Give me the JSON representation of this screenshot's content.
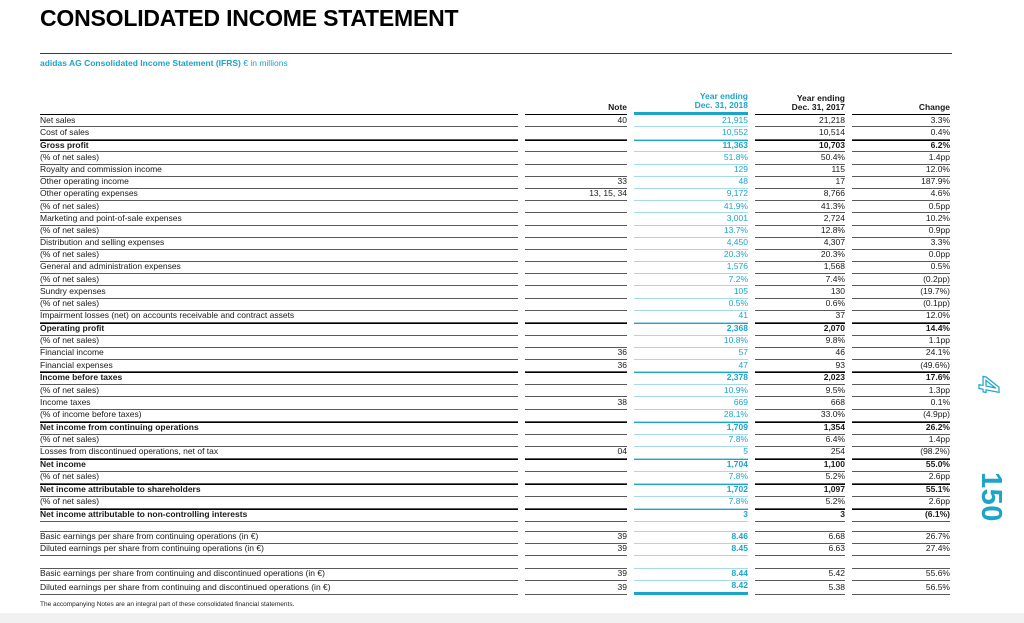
{
  "page": {
    "title": "CONSOLIDATED INCOME STATEMENT",
    "subtitle_bold": "adidas AG Consolidated Income Statement (IFRS)",
    "subtitle_unit": "€ in millions",
    "footnote": "The accompanying Notes are an integral part of these consolidated financial statements.",
    "side_chapter": "4",
    "side_page": "150"
  },
  "colors": {
    "accent": "#1CA4C9",
    "accent_light_rule": "#A6D9EA",
    "rule_dark": "#5a5a5a",
    "rule_black": "#000000"
  },
  "table": {
    "columns": {
      "note": "Note",
      "y2018": {
        "line1": "Year ending",
        "line2": "Dec. 31, 2018"
      },
      "y2017": {
        "line1": "Year ending",
        "line2": "Dec. 31, 2017"
      },
      "change": "Change"
    },
    "rows": [
      {
        "label": "Net sales",
        "indent": 0,
        "bold": false,
        "note": "40",
        "y2018": "21,915",
        "y2017": "21,218",
        "change": "3.3%"
      },
      {
        "label": "Cost of sales",
        "indent": 0,
        "bold": false,
        "note": "",
        "y2018": "10,552",
        "y2017": "10,514",
        "change": "0.4%"
      },
      {
        "label": "Gross profit",
        "indent": 0,
        "bold": true,
        "note": "",
        "y2018": "11,363",
        "y2017": "10,703",
        "change": "6.2%"
      },
      {
        "label": "(% of net sales)",
        "indent": 1,
        "bold": false,
        "note": "",
        "y2018": "51.8%",
        "y2017": "50.4%",
        "change": "1.4pp"
      },
      {
        "label": "Royalty and commission income",
        "indent": 0,
        "bold": false,
        "note": "",
        "y2018": "129",
        "y2017": "115",
        "change": "12.0%"
      },
      {
        "label": "Other operating income",
        "indent": 0,
        "bold": false,
        "note": "33",
        "y2018": "48",
        "y2017": "17",
        "change": "187.9%"
      },
      {
        "label": "Other operating expenses",
        "indent": 0,
        "bold": false,
        "note": "13, 15, 34",
        "y2018": "9,172",
        "y2017": "8,766",
        "change": "4.6%"
      },
      {
        "label": "(% of net sales)",
        "indent": 1,
        "bold": false,
        "note": "",
        "y2018": "41.9%",
        "y2017": "41.3%",
        "change": "0.5pp"
      },
      {
        "label": "Marketing and point-of-sale expenses",
        "indent": 2,
        "bold": false,
        "note": "",
        "y2018": "3,001",
        "y2017": "2,724",
        "change": "10.2%"
      },
      {
        "label": "(% of net sales)",
        "indent": 3,
        "bold": false,
        "note": "",
        "y2018": "13.7%",
        "y2017": "12.8%",
        "change": "0.9pp"
      },
      {
        "label": "Distribution and selling expenses",
        "indent": 2,
        "bold": false,
        "note": "",
        "y2018": "4,450",
        "y2017": "4,307",
        "change": "3.3%"
      },
      {
        "label": "(% of net sales)",
        "indent": 3,
        "bold": false,
        "note": "",
        "y2018": "20.3%",
        "y2017": "20.3%",
        "change": "0.0pp"
      },
      {
        "label": "General and administration expenses",
        "indent": 2,
        "bold": false,
        "note": "",
        "y2018": "1,576",
        "y2017": "1,568",
        "change": "0.5%"
      },
      {
        "label": "(% of net sales)",
        "indent": 3,
        "bold": false,
        "note": "",
        "y2018": "7.2%",
        "y2017": "7.4%",
        "change": "(0.2pp)"
      },
      {
        "label": "Sundry expenses",
        "indent": 2,
        "bold": false,
        "note": "",
        "y2018": "105",
        "y2017": "130",
        "change": "(19.7%)"
      },
      {
        "label": "(% of net sales)",
        "indent": 3,
        "bold": false,
        "note": "",
        "y2018": "0.5%",
        "y2017": "0.6%",
        "change": "(0.1pp)"
      },
      {
        "label": "Impairment losses (net) on accounts receivable and contract assets",
        "indent": 2,
        "bold": false,
        "note": "",
        "y2018": "41",
        "y2017": "37",
        "change": "12.0%"
      },
      {
        "label": "Operating profit",
        "indent": 0,
        "bold": true,
        "note": "",
        "y2018": "2,368",
        "y2017": "2,070",
        "change": "14.4%"
      },
      {
        "label": "(% of net sales)",
        "indent": 1,
        "bold": false,
        "note": "",
        "y2018": "10.8%",
        "y2017": "9.8%",
        "change": "1.1pp"
      },
      {
        "label": "Financial income",
        "indent": 0,
        "bold": false,
        "note": "36",
        "y2018": "57",
        "y2017": "46",
        "change": "24.1%"
      },
      {
        "label": "Financial expenses",
        "indent": 0,
        "bold": false,
        "note": "36",
        "y2018": "47",
        "y2017": "93",
        "change": "(49.6%)"
      },
      {
        "label": "Income before taxes",
        "indent": 0,
        "bold": true,
        "note": "",
        "y2018": "2,378",
        "y2017": "2,023",
        "change": "17.6%"
      },
      {
        "label": "(% of net sales)",
        "indent": 1,
        "bold": false,
        "note": "",
        "y2018": "10.9%",
        "y2017": "9.5%",
        "change": "1.3pp"
      },
      {
        "label": "Income taxes",
        "indent": 0,
        "bold": false,
        "note": "38",
        "y2018": "669",
        "y2017": "668",
        "change": "0.1%"
      },
      {
        "label": "(% of income before taxes)",
        "indent": 1,
        "bold": false,
        "note": "",
        "y2018": "28.1%",
        "y2017": "33.0%",
        "change": "(4.9pp)"
      },
      {
        "label": "Net income from continuing operations",
        "indent": 0,
        "bold": true,
        "note": "",
        "y2018": "1,709",
        "y2017": "1,354",
        "change": "26.2%"
      },
      {
        "label": "(% of net sales)",
        "indent": 1,
        "bold": false,
        "note": "",
        "y2018": "7.8%",
        "y2017": "6.4%",
        "change": "1.4pp"
      },
      {
        "label": "Losses from discontinued operations, net of tax",
        "indent": 0,
        "bold": false,
        "note": "04",
        "y2018": "5",
        "y2017": "254",
        "change": "(98.2%)"
      },
      {
        "label": "Net income",
        "indent": 0,
        "bold": true,
        "note": "",
        "y2018": "1,704",
        "y2017": "1,100",
        "change": "55.0%"
      },
      {
        "label": "(% of net sales)",
        "indent": 1,
        "bold": false,
        "note": "",
        "y2018": "7.8%",
        "y2017": "5.2%",
        "change": "2.6pp"
      },
      {
        "label": "Net income attributable to shareholders",
        "indent": 0,
        "bold": true,
        "note": "",
        "y2018": "1,702",
        "y2017": "1,097",
        "change": "55.1%"
      },
      {
        "label": "(% of net sales)",
        "indent": 1,
        "bold": false,
        "note": "",
        "y2018": "7.8%",
        "y2017": "5.2%",
        "change": "2.6pp"
      },
      {
        "label": "Net income attributable to non-controlling interests",
        "indent": 0,
        "bold": true,
        "note": "",
        "y2018": "3",
        "y2017": "3",
        "change": "(6.1%)"
      }
    ],
    "eps_rows_1": [
      {
        "label": "Basic earnings per share from continuing operations (in €)",
        "indent": 0,
        "bold": false,
        "note": "39",
        "y2018": "8.46",
        "y2017": "6.68",
        "change": "26.7%"
      },
      {
        "label": "Diluted earnings per share from continuing operations (in €)",
        "indent": 0,
        "bold": false,
        "note": "39",
        "y2018": "8.45",
        "y2017": "6.63",
        "change": "27.4%"
      }
    ],
    "eps_rows_2": [
      {
        "label": "Basic earnings per share from continuing and discontinued operations (in €)",
        "indent": 0,
        "bold": false,
        "note": "39",
        "y2018": "8.44",
        "y2017": "5.42",
        "change": "55.6%"
      },
      {
        "label": "Diluted earnings per share from continuing and discontinued operations (in €)",
        "indent": 0,
        "bold": false,
        "note": "39",
        "y2018": "8.42",
        "y2017": "5.38",
        "change": "56.5%"
      }
    ]
  }
}
